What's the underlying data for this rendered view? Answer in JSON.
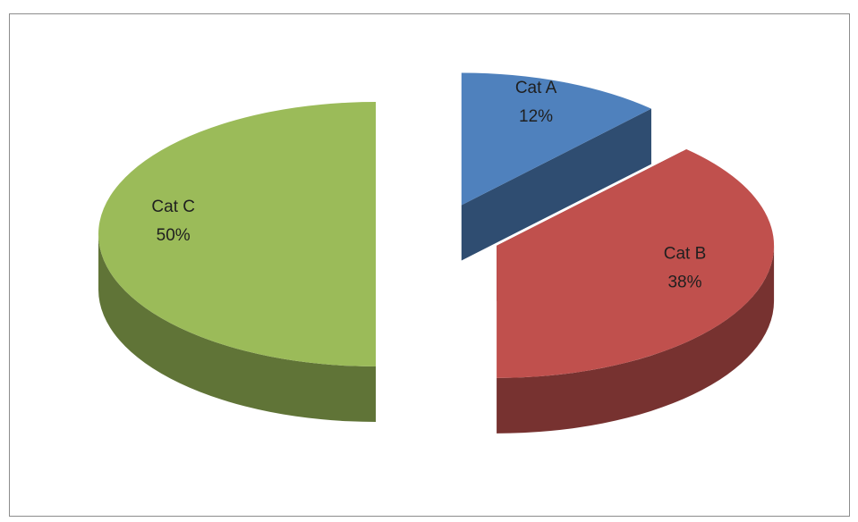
{
  "chart_data": {
    "type": "pie",
    "three_d": true,
    "exploded": true,
    "categories": [
      "Cat A",
      "Cat B",
      "Cat C"
    ],
    "values": [
      12,
      38,
      50
    ],
    "value_labels": [
      "12%",
      "38%",
      "50%"
    ],
    "colors": [
      "#4f81bd",
      "#c0504d",
      "#9bbb59"
    ]
  }
}
